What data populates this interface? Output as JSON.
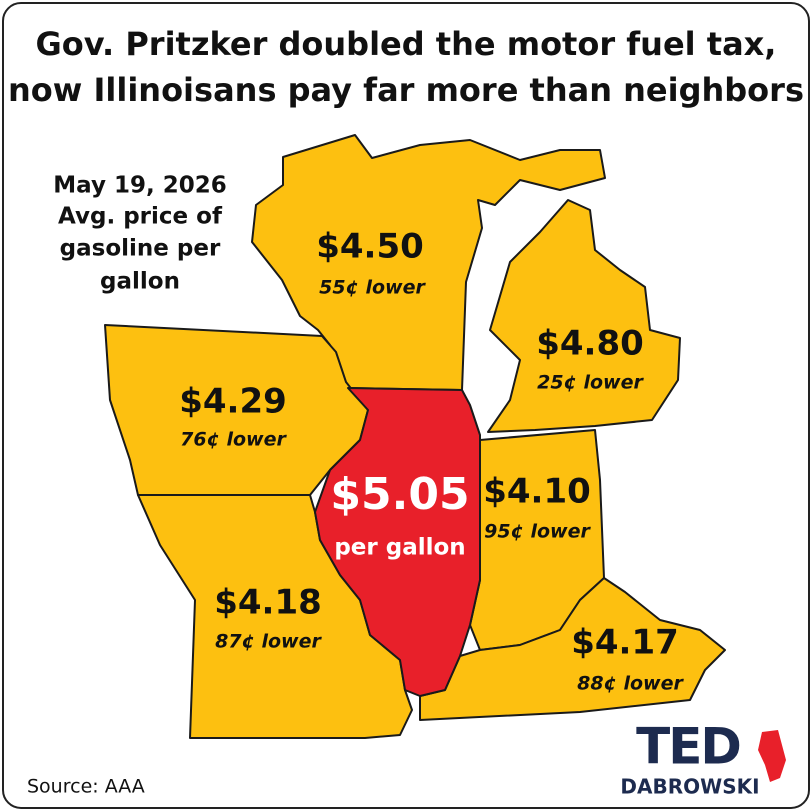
{
  "header": {
    "title": [
      "Gov. Pritzker doubled the motor fuel tax,",
      "now Illinoisans pay far more than neighbors"
    ]
  },
  "caption": [
    "May 19, 2026",
    "Avg. price of",
    "gasoline per",
    "gallon"
  ],
  "states": [
    {
      "price": "$4.50",
      "difference": "55¢ lower"
    },
    {
      "price": "$4.80",
      "difference": "25¢ lower"
    },
    {
      "price": "$4.29",
      "difference": "76¢ lower"
    },
    {
      "price": "$5.05",
      "note": "per gallon"
    },
    {
      "price": "$4.10",
      "difference": "95¢ lower"
    },
    {
      "price": "$4.18",
      "difference": "87¢ lower"
    },
    {
      "price": "$4.17",
      "difference": "88¢ lower"
    }
  ],
  "footer": {
    "source": "Source: AAA",
    "logo": [
      "TED",
      "DABROWSKI"
    ]
  }
}
